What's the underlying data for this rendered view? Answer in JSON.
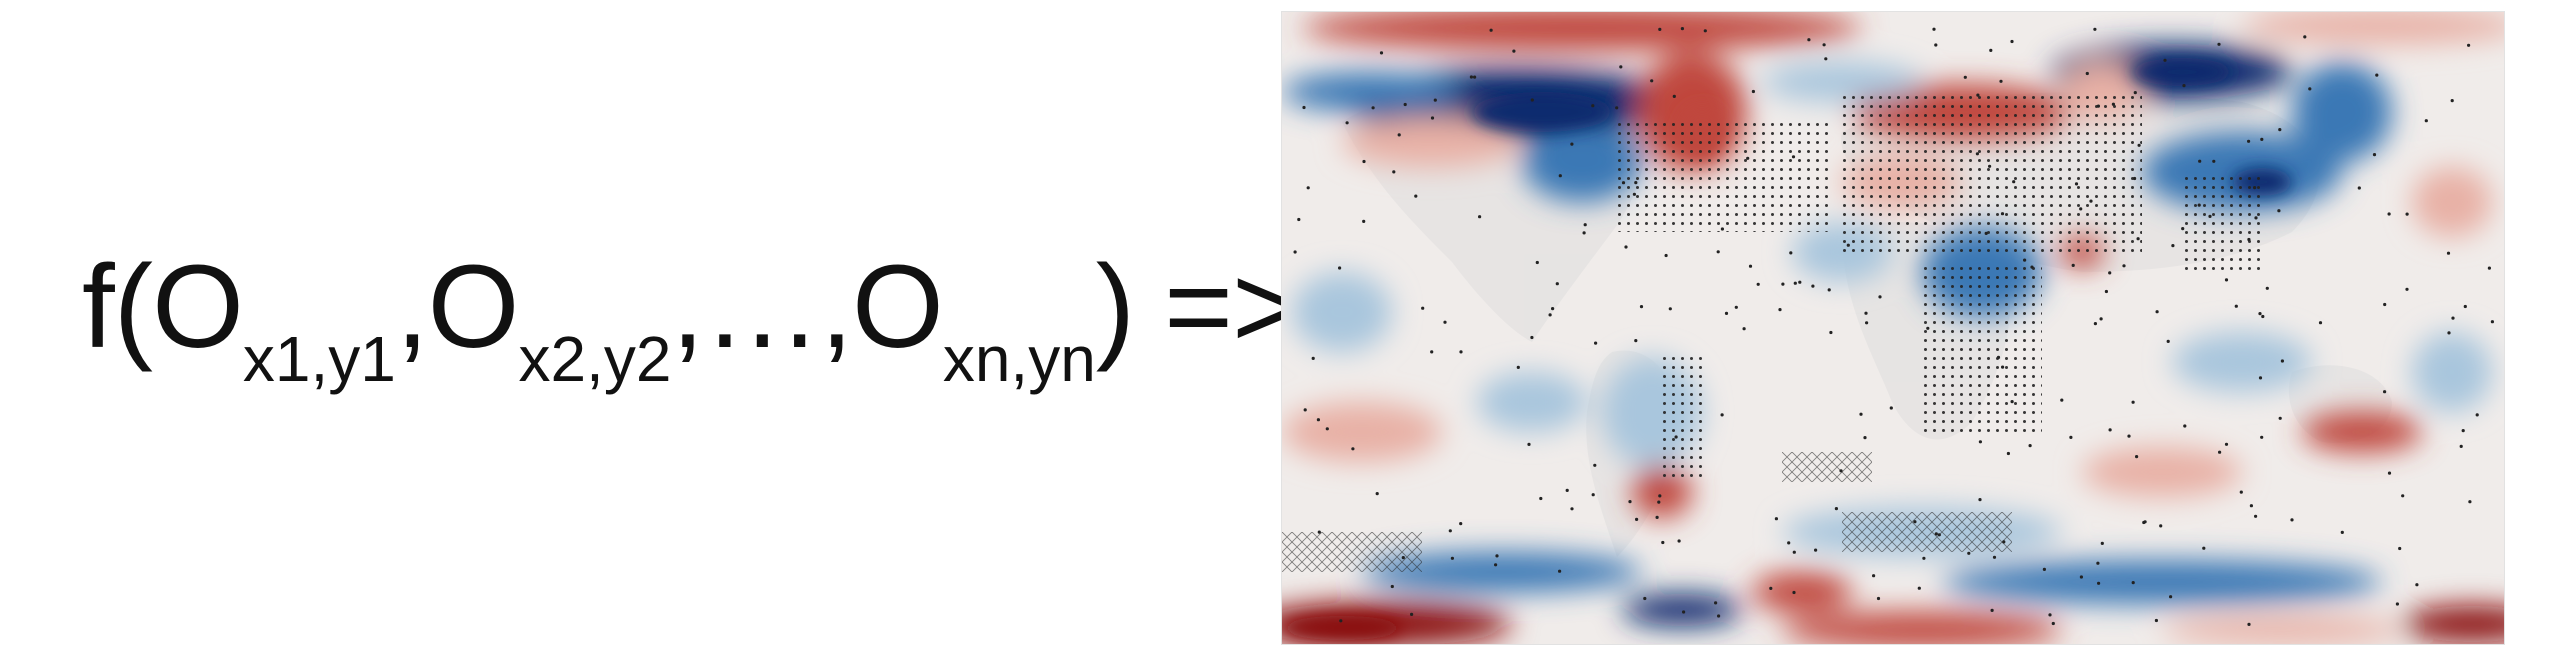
{
  "formula": {
    "func": "f(",
    "args": [
      {
        "symbol": "O",
        "sub": "x1,y1"
      },
      {
        "symbol": "O",
        "sub": "x2,y2"
      },
      {
        "symbol": "O",
        "sub": "xn,yn"
      }
    ],
    "sep": ",",
    "ellipsis": "…",
    "close": ")",
    "arrow": "=>"
  },
  "map": {
    "palette": {
      "strong_red": "#8a1010",
      "red": "#c0473c",
      "light_red": "#e8b1a6",
      "neutral": "#f0ecea",
      "light_blue": "#a9c6dd",
      "blue": "#3a78b5",
      "strong_blue": "#0f2c6e",
      "stipple": "#222222"
    }
  }
}
